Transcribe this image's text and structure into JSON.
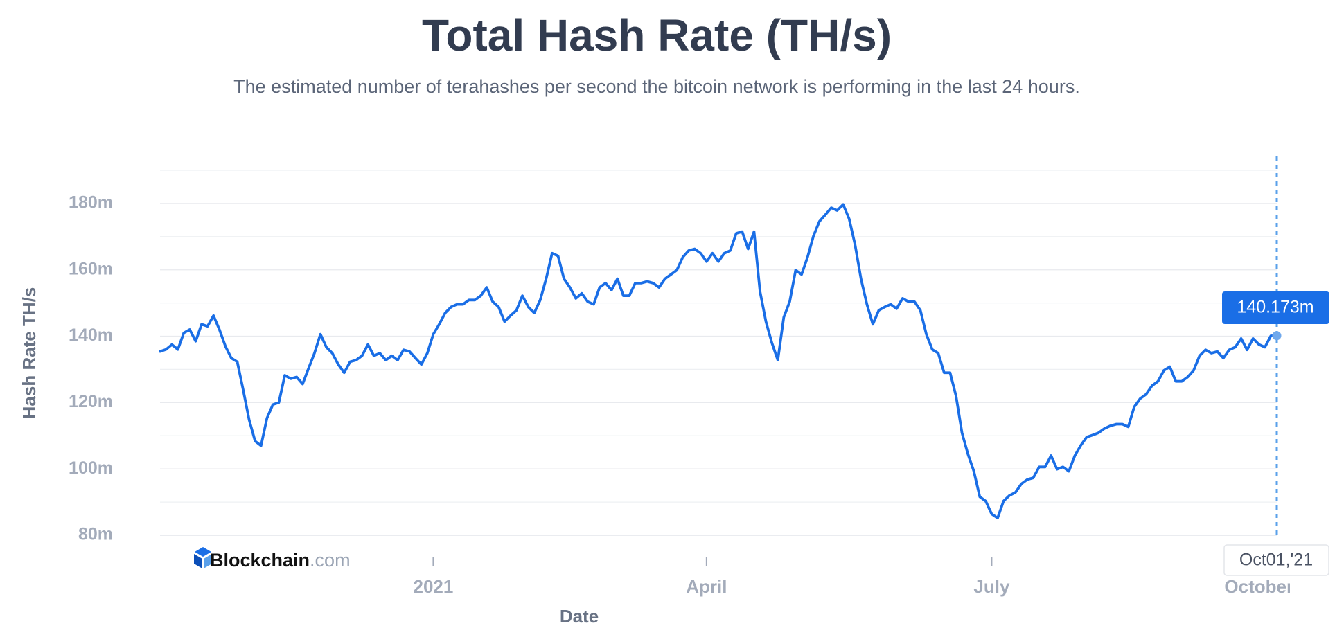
{
  "chart_data": {
    "type": "line",
    "title": "Total Hash Rate (TH/s)",
    "subtitle": "The estimated number of terahashes per second the bitcoin network is performing in the last 24 hours.",
    "y_label": "Hash Rate TH/s",
    "x_label": "Date",
    "logo": {
      "name": "Blockchain",
      "suffix": ".com"
    },
    "ylim": [
      80,
      190
    ],
    "yticks": [
      {
        "value": 80,
        "label": "80m"
      },
      {
        "value": 100,
        "label": "100m"
      },
      {
        "value": 120,
        "label": "120m"
      },
      {
        "value": 140,
        "label": "140m"
      },
      {
        "value": 160,
        "label": "160m"
      },
      {
        "value": 180,
        "label": "180m"
      }
    ],
    "grid": true,
    "minor_grid": true,
    "categories": [
      null,
      null,
      null,
      null,
      null,
      null,
      null,
      null,
      null,
      null,
      null,
      null,
      null,
      null,
      null,
      null,
      null,
      null,
      null,
      null,
      null,
      null,
      null,
      null,
      null,
      null,
      null,
      null,
      null,
      null,
      null,
      null,
      null,
      null,
      null,
      null,
      null,
      null,
      null,
      null,
      null,
      null,
      null,
      null,
      null,
      null,
      "2021",
      null,
      null,
      null,
      null,
      null,
      null,
      null,
      null,
      null,
      null,
      null,
      null,
      null,
      null,
      null,
      null,
      null,
      null,
      null,
      null,
      null,
      null,
      null,
      null,
      null,
      null,
      null,
      null,
      null,
      null,
      null,
      null,
      null,
      null,
      null,
      null,
      null,
      null,
      null,
      null,
      null,
      null,
      null,
      null,
      null,
      "April",
      null,
      null,
      null,
      null,
      null,
      null,
      null,
      null,
      null,
      null,
      null,
      null,
      null,
      null,
      null,
      null,
      null,
      null,
      null,
      null,
      null,
      null,
      null,
      null,
      null,
      null,
      null,
      null,
      null,
      null,
      null,
      null,
      null,
      null,
      null,
      null,
      null,
      null,
      null,
      null,
      null,
      null,
      null,
      null,
      null,
      null,
      null,
      "July",
      null,
      null,
      null,
      null,
      null,
      null,
      null,
      null,
      null,
      null,
      null,
      null,
      null,
      null,
      null,
      null,
      null,
      null,
      null,
      null,
      null,
      null,
      null,
      null,
      null,
      null,
      null,
      null,
      null,
      null,
      null,
      null,
      null,
      null,
      null,
      null,
      null,
      null,
      null,
      null,
      null,
      null,
      null,
      null,
      "October",
      null,
      null,
      "Oct01,'21"
    ],
    "series": [
      {
        "name": "Hash Rate",
        "color": "#1a6ee6",
        "values": [
          135.4,
          136,
          137.5,
          136,
          141,
          142,
          138.5,
          143.6,
          143,
          146.2,
          142,
          137,
          133.4,
          132.3,
          123.8,
          114.8,
          108.4,
          107,
          115.3,
          119.4,
          120,
          128.2,
          127.2,
          127.7,
          125.6,
          130.3,
          134.9,
          140.6,
          136.7,
          134.9,
          131.5,
          129,
          132.3,
          132.8,
          134.1,
          137.5,
          134.1,
          134.9,
          132.8,
          134.1,
          132.8,
          135.9,
          135.4,
          133.4,
          131.5,
          134.9,
          140.6,
          143.6,
          147,
          148.8,
          149.6,
          149.6,
          150.9,
          150.9,
          152.2,
          154.7,
          150.4,
          148.8,
          144.4,
          146.2,
          147.8,
          152.2,
          148.8,
          147,
          150.9,
          157.3,
          165,
          164.2,
          157.3,
          154.7,
          151.4,
          152.9,
          150.4,
          149.6,
          154.7,
          156,
          153.9,
          157.3,
          152.2,
          152.2,
          156,
          156,
          156.5,
          156,
          154.7,
          157.3,
          158.6,
          159.9,
          163.8,
          165.8,
          166.3,
          165,
          162.5,
          165,
          162.5,
          165,
          165.8,
          171,
          171.5,
          166.3,
          171.5,
          153.5,
          144.4,
          138,
          132.8,
          145.7,
          150.4,
          159.9,
          158.6,
          163.8,
          170.2,
          174.6,
          176.6,
          178.7,
          177.9,
          179.7,
          175.4,
          167.6,
          157.3,
          149.6,
          143.6,
          147.8,
          148.8,
          149.6,
          148.3,
          151.4,
          150.4,
          150.4,
          147.8,
          140.6,
          136,
          134.9,
          129,
          129,
          122,
          110.9,
          104.5,
          99.3,
          91.6,
          90.3,
          86.4,
          85.2,
          90.3,
          92,
          92.9,
          95.5,
          96.8,
          97.3,
          100.6,
          100.6,
          104,
          99.9,
          100.6,
          99.3,
          104,
          107.1,
          109.6,
          110.2,
          110.9,
          112.2,
          113,
          113.5,
          113.5,
          112.7,
          118.7,
          121.2,
          122.5,
          125.1,
          126.4,
          129.7,
          130.8,
          126.4,
          126.4,
          127.7,
          129.7,
          134.1,
          135.9,
          134.9,
          135.4,
          133.4,
          135.9,
          136.7,
          139.3,
          135.9,
          139.3,
          137.5,
          136.7,
          140.1,
          140.173
        ],
        "value_labels": [
          null,
          null,
          null,
          null,
          null,
          null,
          null,
          null,
          null,
          null,
          null,
          null,
          null,
          null,
          null,
          null,
          null,
          null,
          null,
          null,
          null,
          null,
          null,
          null,
          null,
          null,
          null,
          null,
          null,
          null,
          null,
          null,
          null,
          null,
          null,
          null,
          null,
          null,
          null,
          null,
          null,
          null,
          null,
          null,
          null,
          null,
          null,
          null,
          null,
          null,
          null,
          null,
          null,
          null,
          null,
          null,
          null,
          null,
          null,
          null,
          null,
          null,
          null,
          null,
          null,
          null,
          null,
          null,
          null,
          null,
          null,
          null,
          null,
          null,
          null,
          null,
          null,
          null,
          null,
          null,
          null,
          null,
          null,
          null,
          null,
          null,
          null,
          null,
          null,
          null,
          null,
          null,
          null,
          null,
          null,
          null,
          null,
          null,
          null,
          null,
          null,
          null,
          null,
          null,
          null,
          null,
          null,
          null,
          null,
          null,
          null,
          null,
          null,
          null,
          null,
          null,
          null,
          null,
          null,
          null,
          null,
          null,
          null,
          null,
          null,
          null,
          null,
          null,
          null,
          null,
          null,
          null,
          null,
          null,
          null,
          null,
          null,
          null,
          null,
          null,
          null,
          null,
          null,
          null,
          null,
          null,
          null,
          null,
          null,
          null,
          null,
          null,
          null,
          null,
          null,
          null,
          null,
          null,
          null,
          null,
          null,
          null,
          null,
          null,
          null,
          null,
          null,
          null,
          null,
          null,
          null,
          null,
          null,
          null,
          null,
          null,
          null,
          null,
          null,
          null,
          null,
          null,
          null,
          null,
          null,
          null,
          null,
          null,
          "140.173m"
        ]
      }
    ]
  }
}
